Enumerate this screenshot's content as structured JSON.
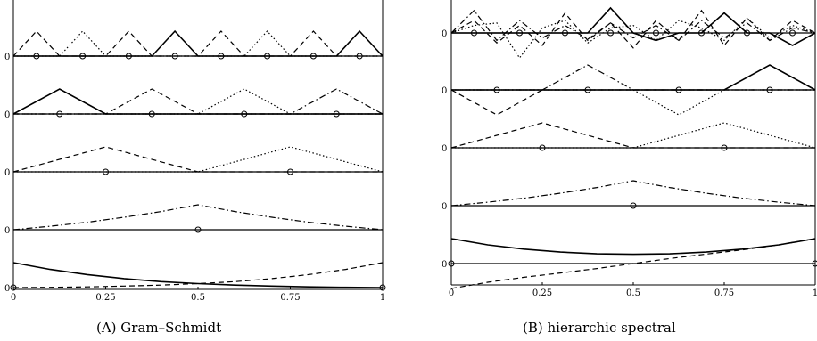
{
  "chart_data": [
    {
      "type": "line",
      "x_ticks": [
        "0",
        "0.25",
        "0.5",
        "0.75",
        "1"
      ],
      "xlim": [
        0,
        1
      ],
      "baseline_label": "0",
      "rows": [
        {
          "peak_height": 1,
          "markers": [
            0.0625,
            0.1875,
            0.3125,
            0.4375,
            0.5625,
            0.6875,
            0.8125,
            0.9375
          ],
          "curves": [
            {
              "style": "dashed",
              "x": [
                0,
                0.0625,
                0.125,
                0.1875,
                0.25,
                0.3125,
                0.375,
                0.4375,
                0.5,
                0.5625,
                0.625,
                0.6875,
                0.75,
                0.8125,
                0.875,
                0.9375,
                1
              ],
              "y": [
                0,
                1,
                0,
                0,
                0,
                1,
                0,
                0,
                0,
                1,
                0,
                0,
                0,
                1,
                0,
                0,
                0
              ]
            },
            {
              "style": "dotted",
              "x": [
                0,
                0.0625,
                0.125,
                0.1875,
                0.25,
                0.3125,
                0.375,
                0.4375,
                0.5,
                0.5625,
                0.625,
                0.6875,
                0.75,
                0.8125,
                0.875,
                0.9375,
                1
              ],
              "y": [
                0,
                0,
                0,
                1,
                0,
                0,
                0,
                0,
                0,
                0,
                0,
                1,
                0,
                0,
                0,
                0,
                0
              ]
            },
            {
              "style": "solid",
              "x": [
                0,
                0.0625,
                0.125,
                0.1875,
                0.25,
                0.3125,
                0.375,
                0.4375,
                0.5,
                0.5625,
                0.625,
                0.6875,
                0.75,
                0.8125,
                0.875,
                0.9375,
                1
              ],
              "y": [
                0,
                0,
                0,
                0,
                0,
                0,
                0,
                1,
                0,
                0,
                0,
                0,
                0,
                0,
                0,
                1,
                0
              ]
            },
            {
              "style": "solid",
              "x": [
                0,
                1
              ],
              "y": [
                0,
                0
              ]
            }
          ]
        },
        {
          "peak_height": 1,
          "markers": [
            0.125,
            0.375,
            0.625,
            0.875
          ],
          "curves": [
            {
              "style": "solid",
              "x": [
                0,
                0.125,
                0.25,
                1
              ],
              "y": [
                0,
                1,
                0,
                0
              ]
            },
            {
              "style": "dashed",
              "x": [
                0,
                0.25,
                0.375,
                0.5,
                1
              ],
              "y": [
                0,
                0,
                1,
                0,
                0
              ]
            },
            {
              "style": "dotted",
              "x": [
                0,
                0.5,
                0.625,
                0.75,
                1
              ],
              "y": [
                0,
                0,
                1,
                0,
                0
              ]
            },
            {
              "style": "dashdot",
              "x": [
                0,
                0.75,
                0.875,
                1
              ],
              "y": [
                0,
                0,
                1,
                0
              ]
            },
            {
              "style": "solid",
              "x": [
                0,
                1
              ],
              "y": [
                0,
                0
              ]
            }
          ]
        },
        {
          "peak_height": 1,
          "markers": [
            0.25,
            0.75
          ],
          "curves": [
            {
              "style": "dashed",
              "x": [
                0,
                0.25,
                0.5,
                1
              ],
              "y": [
                0,
                1,
                0,
                0
              ]
            },
            {
              "style": "dotted",
              "x": [
                0,
                0.5,
                0.75,
                1
              ],
              "y": [
                0,
                0,
                1,
                0
              ]
            },
            {
              "style": "solid",
              "x": [
                0,
                1
              ],
              "y": [
                0,
                0
              ]
            }
          ]
        },
        {
          "peak_height": 1,
          "markers": [
            0.5
          ],
          "curves": [
            {
              "style": "dashdot",
              "x": [
                0,
                0.1,
                0.2,
                0.3,
                0.4,
                0.5,
                0.6,
                0.7,
                0.8,
                0.9,
                1
              ],
              "y": [
                0,
                0.14,
                0.3,
                0.5,
                0.73,
                1,
                0.73,
                0.5,
                0.3,
                0.14,
                0
              ]
            },
            {
              "style": "solid",
              "x": [
                0,
                1
              ],
              "y": [
                0,
                0
              ]
            }
          ]
        },
        {
          "peak_height": 1,
          "markers": [
            0,
            1
          ],
          "curves": [
            {
              "style": "solid",
              "x": [
                0,
                0.1,
                0.2,
                0.3,
                0.4,
                0.5,
                0.6,
                0.7,
                0.8,
                0.9,
                1
              ],
              "y": [
                1,
                0.73,
                0.52,
                0.36,
                0.24,
                0.16,
                0.1,
                0.06,
                0.03,
                0.01,
                0
              ]
            },
            {
              "style": "dashed",
              "x": [
                0,
                0.1,
                0.2,
                0.3,
                0.4,
                0.5,
                0.6,
                0.7,
                0.8,
                0.9,
                1
              ],
              "y": [
                0,
                0.01,
                0.03,
                0.06,
                0.1,
                0.16,
                0.24,
                0.36,
                0.52,
                0.73,
                1
              ]
            }
          ]
        }
      ]
    },
    {
      "type": "line",
      "x_ticks": [
        "0",
        "0.25",
        "0.5",
        "0.75",
        "1"
      ],
      "xlim": [
        0,
        1
      ],
      "baseline_label": "0",
      "rows": [
        {
          "peak_height": 1,
          "markers": [
            0.0625,
            0.1875,
            0.3125,
            0.4375,
            0.5625,
            0.6875,
            0.8125,
            0.9375
          ],
          "curves": [
            {
              "style": "dashdot",
              "x": [
                0,
                0.0625,
                0.125,
                0.1875,
                0.25,
                0.3125,
                0.375,
                0.4375,
                0.5,
                0.5625,
                0.625,
                0.6875,
                0.75,
                0.8125,
                0.875,
                0.9375,
                1
              ],
              "y": [
                0,
                0.9,
                -0.3,
                0.5,
                -0.2,
                0.3,
                -0.25,
                0.4,
                -0.2,
                0.3,
                -0.3,
                0.5,
                -0.2,
                0.4,
                -0.3,
                0.2,
                0
              ]
            },
            {
              "style": "dotted",
              "x": [
                0,
                0.0625,
                0.125,
                0.1875,
                0.25,
                0.3125,
                0.375,
                0.4375,
                0.5,
                0.5625,
                0.625,
                0.6875,
                0.75,
                0.8125,
                0.875,
                0.9375,
                1
              ],
              "y": [
                0,
                0.3,
                0.4,
                -1,
                0.2,
                0.5,
                -0.4,
                0.2,
                0.3,
                -0.3,
                0.5,
                0.2,
                -0.3,
                0.6,
                -0.2,
                0.3,
                0
              ]
            },
            {
              "style": "dashed",
              "x": [
                0,
                0.0625,
                0.125,
                0.1875,
                0.25,
                0.3125,
                0.375,
                0.4375,
                0.5,
                0.5625,
                0.625,
                0.6875,
                0.75,
                0.8125,
                0.875,
                0.9375,
                1
              ],
              "y": [
                0,
                0.5,
                -0.4,
                0.3,
                -0.5,
                0.8,
                -0.3,
                0.4,
                -0.6,
                0.5,
                -0.3,
                0.9,
                -0.5,
                0.6,
                -0.3,
                0.5,
                0
              ]
            },
            {
              "style": "solid",
              "x": [
                0,
                0.0625,
                0.125,
                0.1875,
                0.25,
                0.3125,
                0.375,
                0.4375,
                0.5,
                0.5625,
                0.625,
                0.6875,
                0.75,
                0.8125,
                0.875,
                0.9375,
                1
              ],
              "y": [
                0,
                0,
                0,
                0,
                0,
                0,
                0,
                1,
                0,
                -0.3,
                0,
                0,
                0.8,
                0,
                0,
                -0.5,
                0
              ]
            },
            {
              "style": "solid",
              "x": [
                0,
                1
              ],
              "y": [
                0,
                0
              ]
            }
          ]
        },
        {
          "peak_height": 1,
          "markers": [
            0.125,
            0.375,
            0.625,
            0.875
          ],
          "curves": [
            {
              "style": "dashed",
              "x": [
                0,
                0.125,
                0.25,
                0.375,
                0.5,
                1
              ],
              "y": [
                0,
                -1,
                0,
                0,
                0,
                0
              ]
            },
            {
              "style": "dashdot",
              "x": [
                0,
                0.25,
                0.375,
                0.5,
                1
              ],
              "y": [
                0,
                0,
                1,
                0,
                0
              ]
            },
            {
              "style": "dotted",
              "x": [
                0,
                0.5,
                0.625,
                0.75,
                1
              ],
              "y": [
                0,
                0,
                -1,
                0,
                0
              ]
            },
            {
              "style": "solid",
              "x": [
                0,
                0.75,
                0.875,
                1
              ],
              "y": [
                0,
                0,
                1,
                0
              ]
            },
            {
              "style": "solid",
              "x": [
                0,
                1
              ],
              "y": [
                0,
                0
              ]
            }
          ]
        },
        {
          "peak_height": 1,
          "markers": [
            0.25,
            0.75
          ],
          "curves": [
            {
              "style": "dashed",
              "x": [
                0,
                0.25,
                0.5,
                1
              ],
              "y": [
                0,
                1,
                0,
                0
              ]
            },
            {
              "style": "dotted",
              "x": [
                0,
                0.5,
                0.75,
                1
              ],
              "y": [
                0,
                0,
                1,
                0
              ]
            },
            {
              "style": "solid",
              "x": [
                0,
                1
              ],
              "y": [
                0,
                0
              ]
            }
          ]
        },
        {
          "peak_height": 1,
          "markers": [
            0.5
          ],
          "curves": [
            {
              "style": "dashdot",
              "x": [
                0,
                0.1,
                0.2,
                0.3,
                0.4,
                0.5,
                0.6,
                0.7,
                0.8,
                0.9,
                1
              ],
              "y": [
                0,
                0.14,
                0.3,
                0.5,
                0.73,
                1,
                0.73,
                0.5,
                0.3,
                0.14,
                0
              ]
            },
            {
              "style": "solid",
              "x": [
                0,
                1
              ],
              "y": [
                0,
                0
              ]
            }
          ]
        },
        {
          "peak_height": 1,
          "markers": [
            0,
            1
          ],
          "curves": [
            {
              "style": "solid",
              "x": [
                0,
                0.1,
                0.2,
                0.3,
                0.4,
                0.5,
                0.6,
                0.7,
                0.8,
                0.9,
                1
              ],
              "y": [
                1,
                0.75,
                0.58,
                0.46,
                0.39,
                0.37,
                0.39,
                0.46,
                0.58,
                0.75,
                1
              ]
            },
            {
              "style": "dashed",
              "x": [
                0,
                0.1,
                0.2,
                0.3,
                0.4,
                0.5,
                0.6,
                0.7,
                0.8,
                0.9,
                1
              ],
              "y": [
                -1,
                -0.75,
                -0.55,
                -0.38,
                -0.2,
                0,
                0.2,
                0.38,
                0.55,
                0.75,
                1
              ]
            },
            {
              "style": "solid",
              "x": [
                0,
                1
              ],
              "y": [
                0,
                0
              ]
            }
          ]
        }
      ]
    }
  ],
  "captions": {
    "a": "(A) Gram–Schmidt",
    "b": "(B) hierarchic spectral"
  }
}
